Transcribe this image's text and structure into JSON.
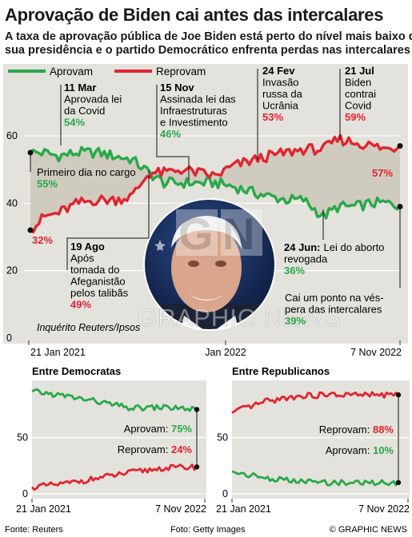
{
  "header": {
    "title": "Aprovação de Biden cai antes das intercalares",
    "subtitle_line1": "A taxa de aprovação pública de Joe Biden está perto do nível mais baixo da",
    "subtitle_line2": "sua presidência e o partido Democrático enfrenta perdas nas intercalares"
  },
  "colors": {
    "approve": "#2aa84a",
    "disapprove": "#e0252f",
    "panel": "#e3e2dc",
    "band": "#cfcbbf"
  },
  "chart_data": [
    {
      "type": "line",
      "ylim": [
        0,
        65
      ],
      "y_ticks": [
        "0",
        "20",
        "40",
        "60"
      ],
      "x_ticks": [
        "21 Jan 2021",
        "Jan 2022",
        "7 Nov 2022"
      ],
      "legend": [
        "Aprovam",
        "Reprovam"
      ],
      "legend_position": "top-left",
      "source_note": "Inquérito Reuters/Ipsos",
      "series": [
        {
          "name": "Aprovam",
          "x": [
            "2021-01-21",
            "2021-02-15",
            "2021-03-11",
            "2021-04-15",
            "2021-05-20",
            "2021-06-20",
            "2021-07-20",
            "2021-08-19",
            "2021-09-15",
            "2021-10-15",
            "2021-11-15",
            "2021-12-15",
            "2022-01-15",
            "2022-02-24",
            "2022-03-20",
            "2022-04-20",
            "2022-05-20",
            "2022-06-24",
            "2022-07-21",
            "2022-08-20",
            "2022-09-20",
            "2022-10-15",
            "2022-11-07"
          ],
          "values": [
            55,
            55,
            54,
            55,
            55,
            54,
            53,
            49,
            46,
            46,
            46,
            46,
            45,
            43,
            42,
            41,
            41,
            36,
            39,
            39,
            40,
            40,
            39
          ]
        },
        {
          "name": "Reprovam",
          "x": [
            "2021-01-21",
            "2021-02-15",
            "2021-03-11",
            "2021-04-15",
            "2021-05-20",
            "2021-06-20",
            "2021-07-20",
            "2021-08-19",
            "2021-09-15",
            "2021-10-15",
            "2021-11-15",
            "2021-12-15",
            "2022-01-15",
            "2022-02-24",
            "2022-03-20",
            "2022-04-20",
            "2022-05-20",
            "2022-06-24",
            "2022-07-21",
            "2022-08-20",
            "2022-09-20",
            "2022-10-15",
            "2022-11-07"
          ],
          "values": [
            32,
            36,
            37,
            40,
            41,
            41,
            42,
            49,
            49,
            50,
            49,
            48,
            51,
            53,
            54,
            55,
            56,
            56,
            59,
            58,
            57,
            56,
            57
          ]
        }
      ],
      "annotations": [
        {
          "date": "11 Mar",
          "text": [
            "Aprovada lei",
            "da Covid"
          ],
          "value": "54%",
          "series": "Aprovam"
        },
        {
          "date": "15 Nov",
          "text": [
            "Assinada lei das",
            "Infraestruturas",
            "e Investimento"
          ],
          "value": "46%",
          "series": "Aprovam"
        },
        {
          "date": "24 Fev",
          "text": [
            "Invasão",
            "russa da",
            "Ucrânia"
          ],
          "value": "53%",
          "series": "Reprovam"
        },
        {
          "date": "21 Jul",
          "text": [
            "Biden",
            "contrai",
            "Covid"
          ],
          "value": "59%",
          "series": "Reprovam"
        },
        {
          "date": "",
          "text": [
            "Primeiro dia no cargo"
          ],
          "value": "55%",
          "series": "Aprovam"
        },
        {
          "date": "",
          "text": [],
          "value": "32%",
          "series": "Reprovam"
        },
        {
          "date": "19 Ago",
          "text": [
            "Após",
            "tomada do",
            "Afeganistão",
            "pelos talibãs"
          ],
          "value": "49%",
          "series": "Reprovam"
        },
        {
          "date": "24 Jun:",
          "text": [
            "Lei do aborto",
            "revogada"
          ],
          "value": "36%",
          "series": "Aprovam"
        },
        {
          "date": "",
          "text": [
            "Cai um ponto na vés-",
            "pera das intercalares"
          ],
          "value": "39%",
          "series": "Aprovam"
        },
        {
          "date": "",
          "text": [],
          "value": "57%",
          "series": "Reprovam"
        }
      ]
    },
    {
      "type": "line",
      "title": "Entre Democratas",
      "ylim": [
        0,
        100
      ],
      "y_ticks": [
        "0",
        "50"
      ],
      "x_ticks": [
        "21 Jan 2021",
        "7 Nov 2022"
      ],
      "series": [
        {
          "name": "Aprovam",
          "x": [
            "2021-01",
            "2021-06",
            "2021-11",
            "2022-04",
            "2022-09",
            "2022-11"
          ],
          "values": [
            91,
            87,
            82,
            76,
            77,
            75
          ],
          "end_label": "Aprovam: 75%"
        },
        {
          "name": "Reprovam",
          "x": [
            "2021-01",
            "2021-06",
            "2021-11",
            "2022-04",
            "2022-09",
            "2022-11"
          ],
          "values": [
            6,
            9,
            14,
            19,
            23,
            24
          ],
          "end_label": "Reprovam: 24%"
        }
      ]
    },
    {
      "type": "line",
      "title": "Entre Republicanos",
      "ylim": [
        0,
        100
      ],
      "y_ticks": [
        "0",
        "50"
      ],
      "x_ticks": [
        "21 Jan 2021",
        "7 Nov 2022"
      ],
      "series": [
        {
          "name": "Reprovam",
          "x": [
            "2021-01",
            "2021-06",
            "2021-11",
            "2022-04",
            "2022-09",
            "2022-11"
          ],
          "values": [
            72,
            82,
            87,
            88,
            88,
            88
          ],
          "end_label": "Reprovam: 88%"
        },
        {
          "name": "Aprovam",
          "x": [
            "2021-01",
            "2021-06",
            "2021-11",
            "2022-04",
            "2022-09",
            "2022-11"
          ],
          "values": [
            20,
            14,
            11,
            10,
            10,
            10
          ],
          "end_label": "Aprovam: 10%"
        }
      ]
    }
  ],
  "footer": {
    "source": "Fonte: Reuters",
    "photo": "Foto: Getty Images",
    "brand": "© GRAPHIC NEWS",
    "watermark": "GRAPHIC NEWS"
  }
}
